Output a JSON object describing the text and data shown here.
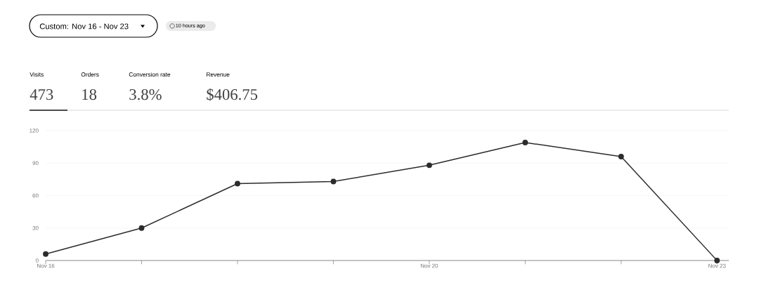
{
  "chart_data": {
    "type": "line",
    "categories": [
      "Nov 16",
      null,
      null,
      null,
      "Nov 20",
      null,
      null,
      "Nov 23"
    ],
    "series": [
      {
        "color": "#2b2b2b",
        "values": [
          6,
          30,
          71,
          73,
          88,
          109,
          96,
          0
        ]
      }
    ],
    "ylim": [
      0,
      120
    ],
    "yticks": [
      0,
      30,
      60,
      90,
      120
    ],
    "grid": "y",
    "marker": "circle",
    "annotations": [
      "Custom: Nov 16 - Nov 23",
      "10 hours ago",
      "Visits",
      "Orders",
      "Conversion rate",
      "Revenue",
      "473",
      "18",
      "3.8%",
      "$406.75"
    ]
  }
}
